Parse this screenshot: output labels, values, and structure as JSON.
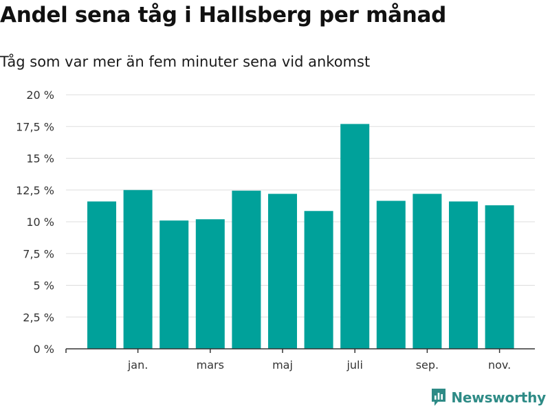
{
  "title": "Andel sena tåg i Hallsberg per månad",
  "subtitle": "Tåg som var mer än fem minuter sena vid ankomst",
  "brand": "Newsworthy",
  "colors": {
    "bar": "#00a19a",
    "grid": "#dddddd",
    "axis": "#333333",
    "brand": "#2e8b86"
  },
  "chart_data": {
    "type": "bar",
    "title": "Andel sena tåg i Hallsberg per månad",
    "subtitle": "Tåg som var mer än fem minuter sena vid ankomst",
    "xlabel": "",
    "ylabel": "",
    "ylim": [
      0,
      20
    ],
    "y_ticks": [
      0,
      2.5,
      5,
      7.5,
      10,
      12.5,
      15,
      17.5,
      20
    ],
    "y_tick_labels": [
      "0 %",
      "2,5 %",
      "5 %",
      "7,5 %",
      "10 %",
      "12,5 %",
      "15 %",
      "17,5 %",
      "20 %"
    ],
    "x_tick_labels": [
      {
        "index": 1,
        "label": "jan."
      },
      {
        "index": 3,
        "label": "mars"
      },
      {
        "index": 5,
        "label": "maj"
      },
      {
        "index": 7,
        "label": "juli"
      },
      {
        "index": 9,
        "label": "sep."
      },
      {
        "index": 11,
        "label": "nov."
      }
    ],
    "values": [
      11.6,
      12.5,
      10.1,
      10.2,
      12.45,
      12.2,
      10.85,
      17.7,
      11.65,
      12.2,
      11.6,
      11.3
    ],
    "grid": true,
    "legend": "none"
  }
}
